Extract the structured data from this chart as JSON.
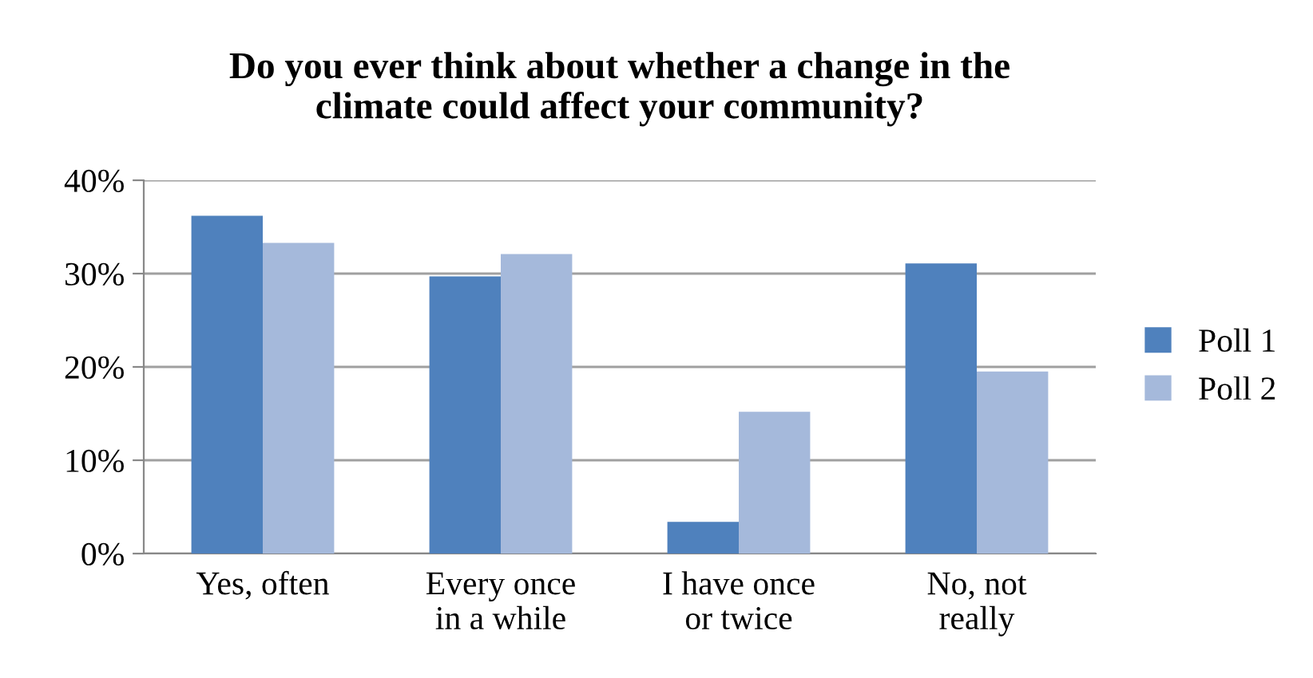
{
  "chart_data": {
    "type": "bar",
    "title": "Do you ever think about whether a change in the\nclimate could affect your community?",
    "categories": [
      "Yes, often",
      "Every once\nin a while",
      "I have once\nor twice",
      "No, not\nreally"
    ],
    "series": [
      {
        "name": "Poll 1",
        "color": "#4f81bd",
        "values": [
          36.2,
          29.7,
          3.4,
          31.1
        ]
      },
      {
        "name": "Poll 2",
        "color": "#a5b9db",
        "values": [
          33.3,
          32.1,
          15.2,
          19.5
        ]
      }
    ],
    "ylim": [
      0,
      40
    ],
    "yticks": [
      {
        "value": 0,
        "label": "0%"
      },
      {
        "value": 10,
        "label": "10%"
      },
      {
        "value": 20,
        "label": "20%"
      },
      {
        "value": 30,
        "label": "30%"
      },
      {
        "value": 40,
        "label": "40%"
      }
    ],
    "grid": "y",
    "legend": "right"
  }
}
